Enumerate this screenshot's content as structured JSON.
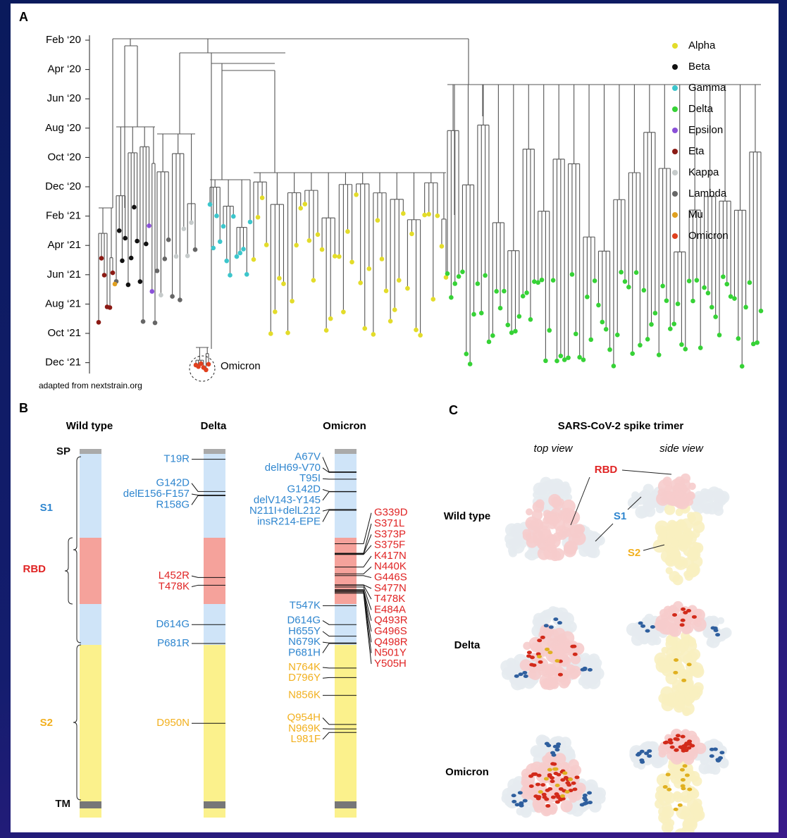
{
  "panel_a": {
    "label": "A",
    "dates": [
      "Feb ‘20",
      "Apr ‘20",
      "Jun ‘20",
      "Aug ‘20",
      "Oct ‘20",
      "Dec ‘20",
      "Feb ‘21",
      "Apr ‘21",
      "Jun ‘21",
      "Aug ‘21",
      "Oct ‘21",
      "Dec ‘21"
    ],
    "legend": [
      {
        "name": "Alpha",
        "color": "#e3dc2a"
      },
      {
        "name": "Beta",
        "color": "#111111"
      },
      {
        "name": "Gamma",
        "color": "#3cc6cc"
      },
      {
        "name": "Delta",
        "color": "#36d236"
      },
      {
        "name": "Epsilon",
        "color": "#8a50d8"
      },
      {
        "name": "Eta",
        "color": "#8b1a14"
      },
      {
        "name": "Kappa",
        "color": "#c6cbcb"
      },
      {
        "name": "Lambda",
        "color": "#666666"
      },
      {
        "name": "Mu",
        "color": "#e0a020"
      },
      {
        "name": "Omicron",
        "color": "#e0401e"
      }
    ],
    "annotation": "Omicron",
    "source": "adapted from nextstrain.org"
  },
  "panel_b": {
    "label": "B",
    "columns": [
      "Wild type",
      "Delta",
      "Omicron"
    ],
    "domains": [
      "SP",
      "S1",
      "RBD",
      "S2",
      "TM"
    ],
    "domain_colors": {
      "S1": "#2f86cf",
      "RBD": "#e02424",
      "S2": "#f2b01e"
    },
    "delta": [
      "T19R",
      "G142D",
      "delE156-F157",
      "R158G",
      "L452R",
      "T478K",
      "D614G",
      "P681R",
      "D950N"
    ],
    "omicron_left": [
      "A67V",
      "delH69-V70",
      "T95I",
      "G142D",
      "delV143-Y145",
      "N211I+delL212",
      "insR214-EPE",
      "T547K",
      "D614G",
      "H655Y",
      "N679K",
      "P681H",
      "N764K",
      "D796Y",
      "N856K",
      "Q954H",
      "N969K",
      "L981F"
    ],
    "omicron_right": [
      "G339D",
      "S371L",
      "S373P",
      "S375F",
      "K417N",
      "N440K",
      "G446S",
      "S477N",
      "T478K",
      "E484A",
      "Q493R",
      "G496S",
      "Q498R",
      "N501Y",
      "Y505H"
    ]
  },
  "panel_c": {
    "label": "C",
    "title": "SARS-CoV-2 spike trimer",
    "views": [
      "top view",
      "side view"
    ],
    "rows": [
      "Wild type",
      "Delta",
      "Omicron"
    ],
    "callouts": [
      "RBD",
      "S1",
      "S2"
    ]
  }
}
